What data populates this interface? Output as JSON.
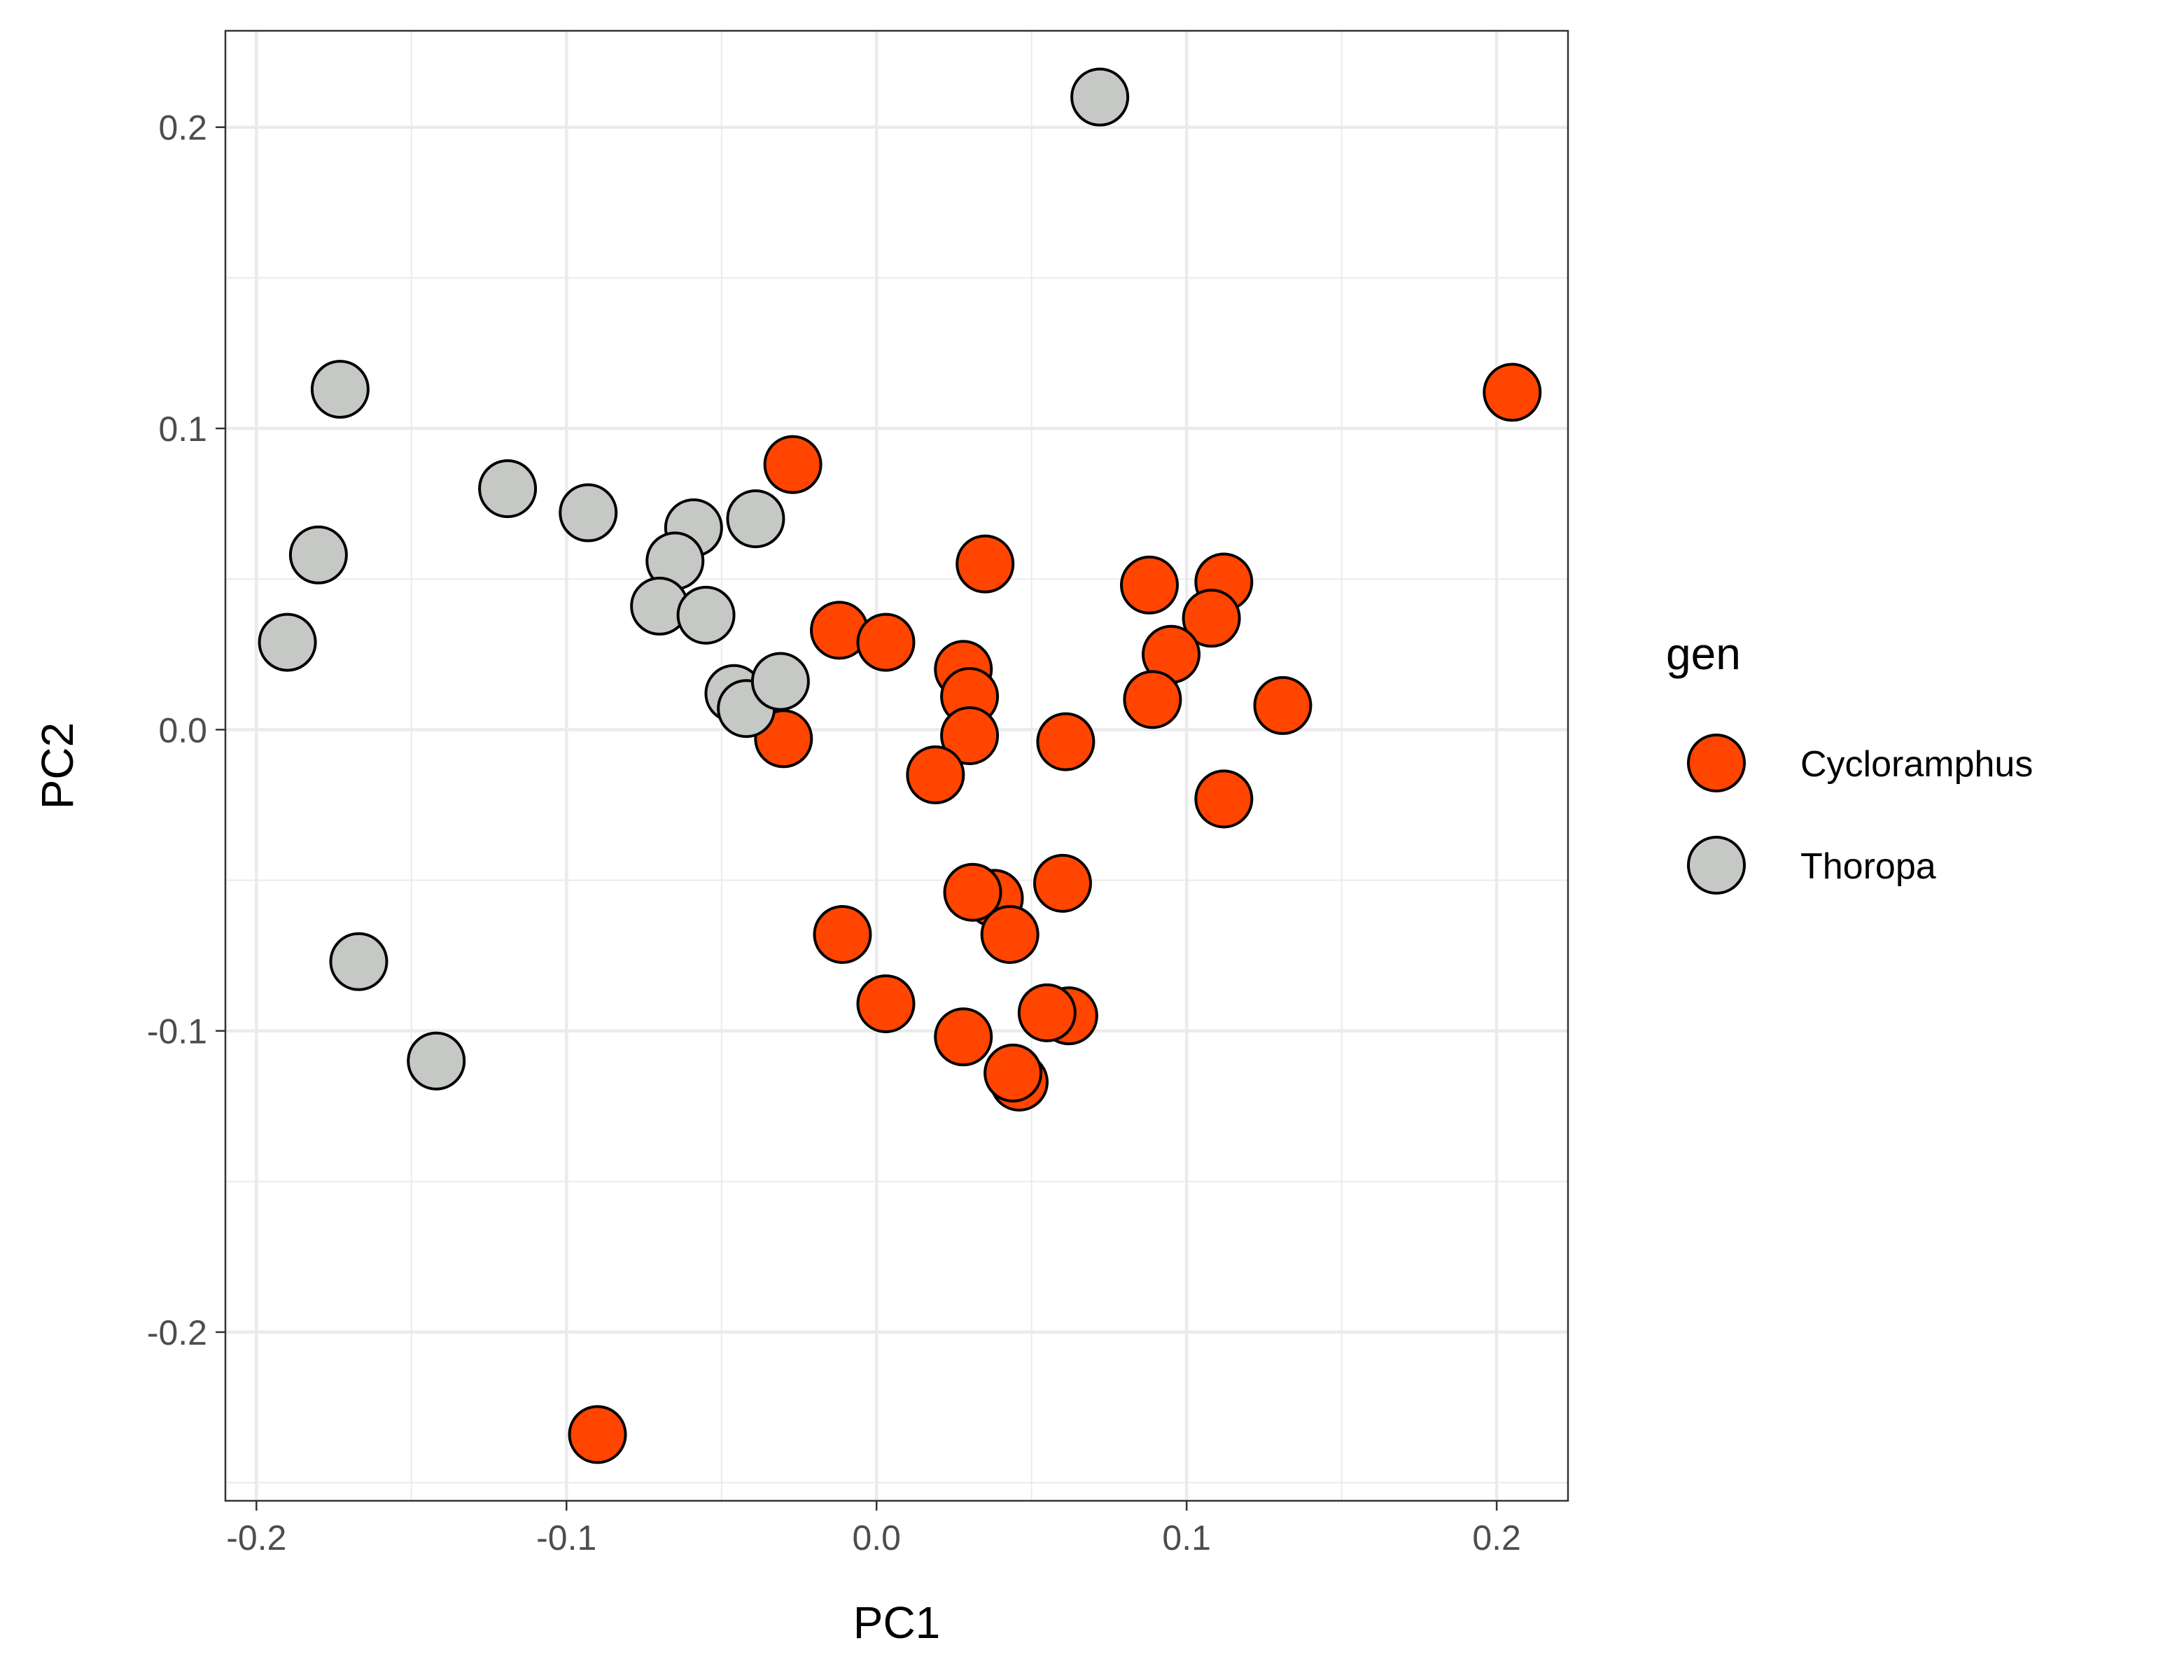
{
  "chart_data": {
    "type": "scatter",
    "xlabel": "PC1",
    "ylabel": "PC2",
    "xlim": [
      -0.21,
      0.223
    ],
    "ylim": [
      -0.256,
      0.232
    ],
    "x_ticks": [
      -0.2,
      -0.1,
      0.0,
      0.1,
      0.2
    ],
    "y_ticks": [
      -0.2,
      -0.1,
      0.0,
      0.1,
      0.2
    ],
    "x_tick_labels": [
      "-0.2",
      "-0.1",
      "0.0",
      "0.1",
      "0.2"
    ],
    "y_tick_labels": [
      "-0.2",
      "-0.1",
      "0.0",
      "0.1",
      "0.2"
    ],
    "grid": true,
    "legend": {
      "title": "gen",
      "position": "right"
    },
    "series": [
      {
        "name": "Cycloramphus",
        "color": "#FF4500",
        "points": [
          [
            -0.027,
            0.088
          ],
          [
            0.035,
            0.055
          ],
          [
            0.088,
            0.048
          ],
          [
            0.112,
            0.049
          ],
          [
            -0.012,
            0.033
          ],
          [
            0.003,
            0.029
          ],
          [
            0.108,
            0.037
          ],
          [
            0.095,
            0.025
          ],
          [
            0.028,
            0.02
          ],
          [
            0.03,
            0.011
          ],
          [
            0.089,
            0.01
          ],
          [
            0.131,
            0.008
          ],
          [
            -0.03,
            -0.003
          ],
          [
            0.03,
            -0.002
          ],
          [
            0.061,
            -0.004
          ],
          [
            0.019,
            -0.015
          ],
          [
            0.112,
            -0.023
          ],
          [
            0.038,
            -0.056
          ],
          [
            0.031,
            -0.054
          ],
          [
            0.06,
            -0.051
          ],
          [
            -0.011,
            -0.068
          ],
          [
            0.043,
            -0.068
          ],
          [
            0.003,
            -0.091
          ],
          [
            0.062,
            -0.095
          ],
          [
            0.055,
            -0.094
          ],
          [
            0.028,
            -0.102
          ],
          [
            0.046,
            -0.117
          ],
          [
            0.044,
            -0.114
          ],
          [
            -0.09,
            -0.234
          ],
          [
            0.205,
            0.112
          ]
        ]
      },
      {
        "name": "Thoropa",
        "color": "#C6C8C5",
        "points": [
          [
            0.072,
            0.21
          ],
          [
            -0.173,
            0.113
          ],
          [
            -0.119,
            0.08
          ],
          [
            -0.093,
            0.072
          ],
          [
            -0.039,
            0.07
          ],
          [
            -0.059,
            0.067
          ],
          [
            -0.065,
            0.056
          ],
          [
            -0.18,
            0.058
          ],
          [
            -0.07,
            0.041
          ],
          [
            -0.055,
            0.038
          ],
          [
            -0.19,
            0.029
          ],
          [
            -0.046,
            0.012
          ],
          [
            -0.042,
            0.007
          ],
          [
            -0.031,
            0.016
          ],
          [
            -0.167,
            -0.077
          ],
          [
            -0.142,
            -0.11
          ]
        ]
      }
    ]
  }
}
